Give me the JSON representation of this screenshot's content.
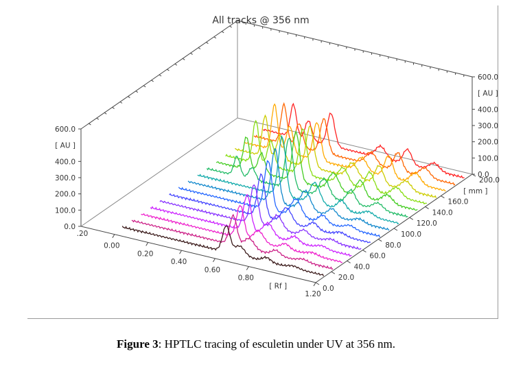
{
  "chart_data": {
    "type": "line",
    "subtype": "3d-stacked-chromatogram",
    "title": "All tracks @ 356 nm",
    "xlabel": "[ Rf ]",
    "ylabel": "[ AU ]",
    "zlabel": "[ mm ]",
    "x_range": [
      -0.2,
      1.2
    ],
    "y_range": [
      0,
      600
    ],
    "z_range": [
      0,
      200
    ],
    "x_ticks": [
      "0.00",
      "0.20",
      "0.40",
      "0.60",
      "0.80",
      "1.20"
    ],
    "x_tick_first_partial": ".20",
    "y_ticks_left": [
      "0.0",
      "100.0",
      "200.0",
      "300.0",
      "400.0",
      "600.0"
    ],
    "y_ticks_right": [
      "0.0",
      "100.0",
      "200.0",
      "300.0",
      "400.0",
      "600.0"
    ],
    "z_ticks": [
      "0.0",
      "20.0",
      "40.0",
      "60.0",
      "80.0",
      "100.0",
      "120.0",
      "140.0",
      "160.0",
      "200.0"
    ],
    "series": [
      {
        "track": 1,
        "z": 10,
        "color": "#3a1a1a",
        "main_peak": 160,
        "early_peak": 0,
        "late_peak": 25
      },
      {
        "track": 2,
        "z": 22,
        "color": "#cc2288",
        "main_peak": 180,
        "early_peak": 0,
        "late_peak": 30
      },
      {
        "track": 3,
        "z": 34,
        "color": "#ee22cc",
        "main_peak": 200,
        "early_peak": 0,
        "late_peak": 30
      },
      {
        "track": 4,
        "z": 46,
        "color": "#cc22ff",
        "main_peak": 220,
        "early_peak": 0,
        "late_peak": 35
      },
      {
        "track": 5,
        "z": 58,
        "color": "#8833ff",
        "main_peak": 240,
        "early_peak": 0,
        "late_peak": 35
      },
      {
        "track": 6,
        "z": 70,
        "color": "#4444ff",
        "main_peak": 260,
        "early_peak": 0,
        "late_peak": 40
      },
      {
        "track": 7,
        "z": 82,
        "color": "#2266ff",
        "main_peak": 300,
        "early_peak": 0,
        "late_peak": 45
      },
      {
        "track": 8,
        "z": 94,
        "color": "#1188cc",
        "main_peak": 330,
        "early_peak": 0,
        "late_peak": 45
      },
      {
        "track": 9,
        "z": 106,
        "color": "#11aaaa",
        "main_peak": 360,
        "early_peak": 0,
        "late_peak": 55
      },
      {
        "track": 10,
        "z": 118,
        "color": "#22bb66",
        "main_peak": 310,
        "early_peak": 120,
        "late_peak": 80
      },
      {
        "track": 11,
        "z": 130,
        "color": "#44cc22",
        "main_peak": 300,
        "early_peak": 200,
        "late_peak": 100
      },
      {
        "track": 12,
        "z": 142,
        "color": "#88dd11",
        "main_peak": 280,
        "early_peak": 260,
        "late_peak": 110
      },
      {
        "track": 13,
        "z": 154,
        "color": "#cccc00",
        "main_peak": 250,
        "early_peak": 250,
        "late_peak": 110
      },
      {
        "track": 14,
        "z": 166,
        "color": "#ffaa00",
        "main_peak": 230,
        "early_peak": 280,
        "late_peak": 130
      },
      {
        "track": 15,
        "z": 178,
        "color": "#ff6600",
        "main_peak": 210,
        "early_peak": 240,
        "late_peak": 110
      },
      {
        "track": 16,
        "z": 190,
        "color": "#ff2222",
        "main_peak": 200,
        "early_peak": 200,
        "late_peak": 90
      }
    ]
  },
  "caption": {
    "label": "Figure 3",
    "text": ": HPTLC tracing of esculetin under UV at 356 nm."
  }
}
